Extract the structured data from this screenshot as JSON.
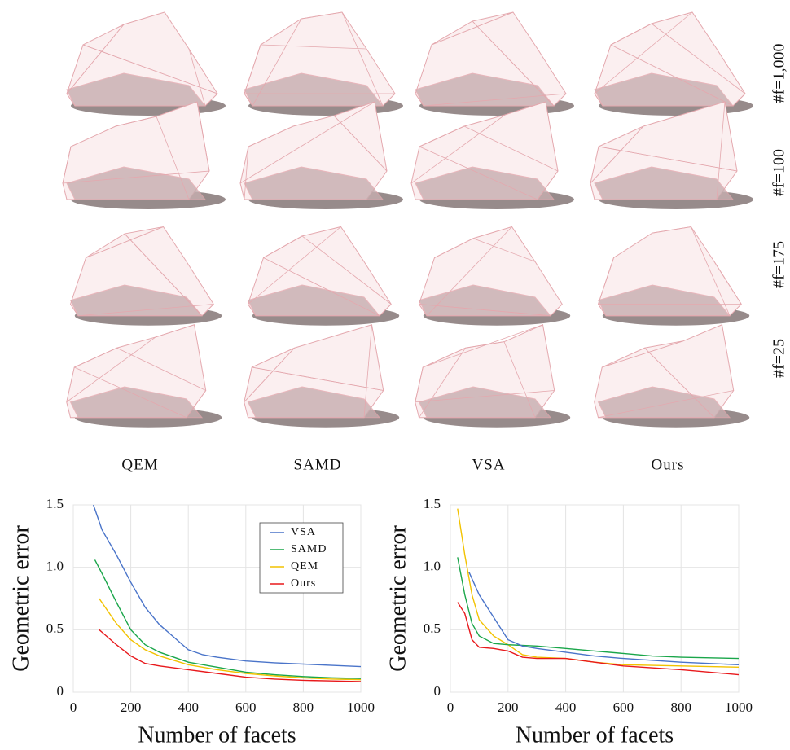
{
  "figure": {
    "columns": [
      "QEM",
      "SAMD",
      "VSA",
      "Ours"
    ],
    "rows": [
      "#f=1,000",
      "#f=100",
      "#f=175",
      "#f=25"
    ]
  },
  "chart_data": [
    {
      "type": "line",
      "x_label": "Number of facets",
      "y_label": "Geometric error",
      "xlim": [
        0,
        1000
      ],
      "ylim": [
        0,
        1.5
      ],
      "xticks": [
        0,
        200,
        400,
        600,
        800,
        1000
      ],
      "yticks": [
        0,
        0.5,
        {
          "value": 1.0,
          "label": "1.0"
        },
        1.5
      ],
      "grid": true,
      "legend": "upper right",
      "series": [
        {
          "name": "VSA",
          "color": "#4a74c9",
          "x": [
            70,
            100,
            150,
            200,
            250,
            300,
            350,
            400,
            450,
            500,
            600,
            700,
            800,
            900,
            1000
          ],
          "values": [
            1.5,
            1.3,
            1.1,
            0.88,
            0.68,
            0.54,
            0.44,
            0.34,
            0.3,
            0.28,
            0.25,
            0.235,
            0.225,
            0.215,
            0.205
          ]
        },
        {
          "name": "SAMD",
          "color": "#1aa64a",
          "x": [
            75,
            100,
            150,
            200,
            250,
            300,
            400,
            500,
            600,
            700,
            800,
            900,
            1000
          ],
          "values": [
            1.06,
            0.95,
            0.72,
            0.5,
            0.38,
            0.32,
            0.24,
            0.2,
            0.16,
            0.14,
            0.125,
            0.115,
            0.11
          ]
        },
        {
          "name": "QEM",
          "color": "#f2c200",
          "x": [
            90,
            150,
            200,
            250,
            300,
            400,
            500,
            600,
            700,
            800,
            900,
            1000
          ],
          "values": [
            0.75,
            0.55,
            0.42,
            0.34,
            0.29,
            0.22,
            0.18,
            0.15,
            0.13,
            0.115,
            0.105,
            0.1
          ]
        },
        {
          "name": "Ours",
          "color": "#e8191c",
          "x": [
            90,
            150,
            200,
            250,
            300,
            400,
            500,
            600,
            700,
            800,
            900,
            1000
          ],
          "values": [
            0.5,
            0.38,
            0.29,
            0.23,
            0.21,
            0.18,
            0.15,
            0.12,
            0.105,
            0.095,
            0.09,
            0.085
          ]
        }
      ]
    },
    {
      "type": "line",
      "x_label": "Number of facets",
      "y_label": "Geometric error",
      "xlim": [
        0,
        1000
      ],
      "ylim": [
        0,
        1.5
      ],
      "xticks": [
        0,
        200,
        400,
        600,
        800,
        1000
      ],
      "yticks": [
        0,
        0.5,
        {
          "value": 1.0,
          "label": "1.0"
        },
        1.5
      ],
      "grid": true,
      "series": [
        {
          "color": "#f2c200",
          "x": [
            25,
            50,
            75,
            100,
            150,
            200,
            250,
            300,
            400,
            500,
            600,
            800,
            1000
          ],
          "values": [
            1.47,
            1.1,
            0.78,
            0.58,
            0.45,
            0.38,
            0.3,
            0.28,
            0.27,
            0.24,
            0.22,
            0.21,
            0.2
          ]
        },
        {
          "color": "#1aa64a",
          "x": [
            25,
            50,
            75,
            100,
            150,
            200,
            300,
            400,
            500,
            600,
            700,
            800,
            1000
          ],
          "values": [
            1.08,
            0.78,
            0.55,
            0.45,
            0.39,
            0.38,
            0.37,
            0.35,
            0.33,
            0.31,
            0.29,
            0.28,
            0.27
          ]
        },
        {
          "color": "#4a74c9",
          "x": [
            65,
            100,
            150,
            200,
            250,
            300,
            400,
            500,
            600,
            800,
            1000
          ],
          "values": [
            0.96,
            0.78,
            0.6,
            0.42,
            0.37,
            0.35,
            0.32,
            0.29,
            0.27,
            0.24,
            0.22
          ]
        },
        {
          "color": "#e8191c",
          "x": [
            25,
            50,
            75,
            100,
            150,
            200,
            250,
            300,
            400,
            500,
            600,
            800,
            1000
          ],
          "values": [
            0.72,
            0.63,
            0.42,
            0.36,
            0.35,
            0.33,
            0.28,
            0.27,
            0.27,
            0.24,
            0.21,
            0.18,
            0.14
          ]
        }
      ]
    }
  ]
}
